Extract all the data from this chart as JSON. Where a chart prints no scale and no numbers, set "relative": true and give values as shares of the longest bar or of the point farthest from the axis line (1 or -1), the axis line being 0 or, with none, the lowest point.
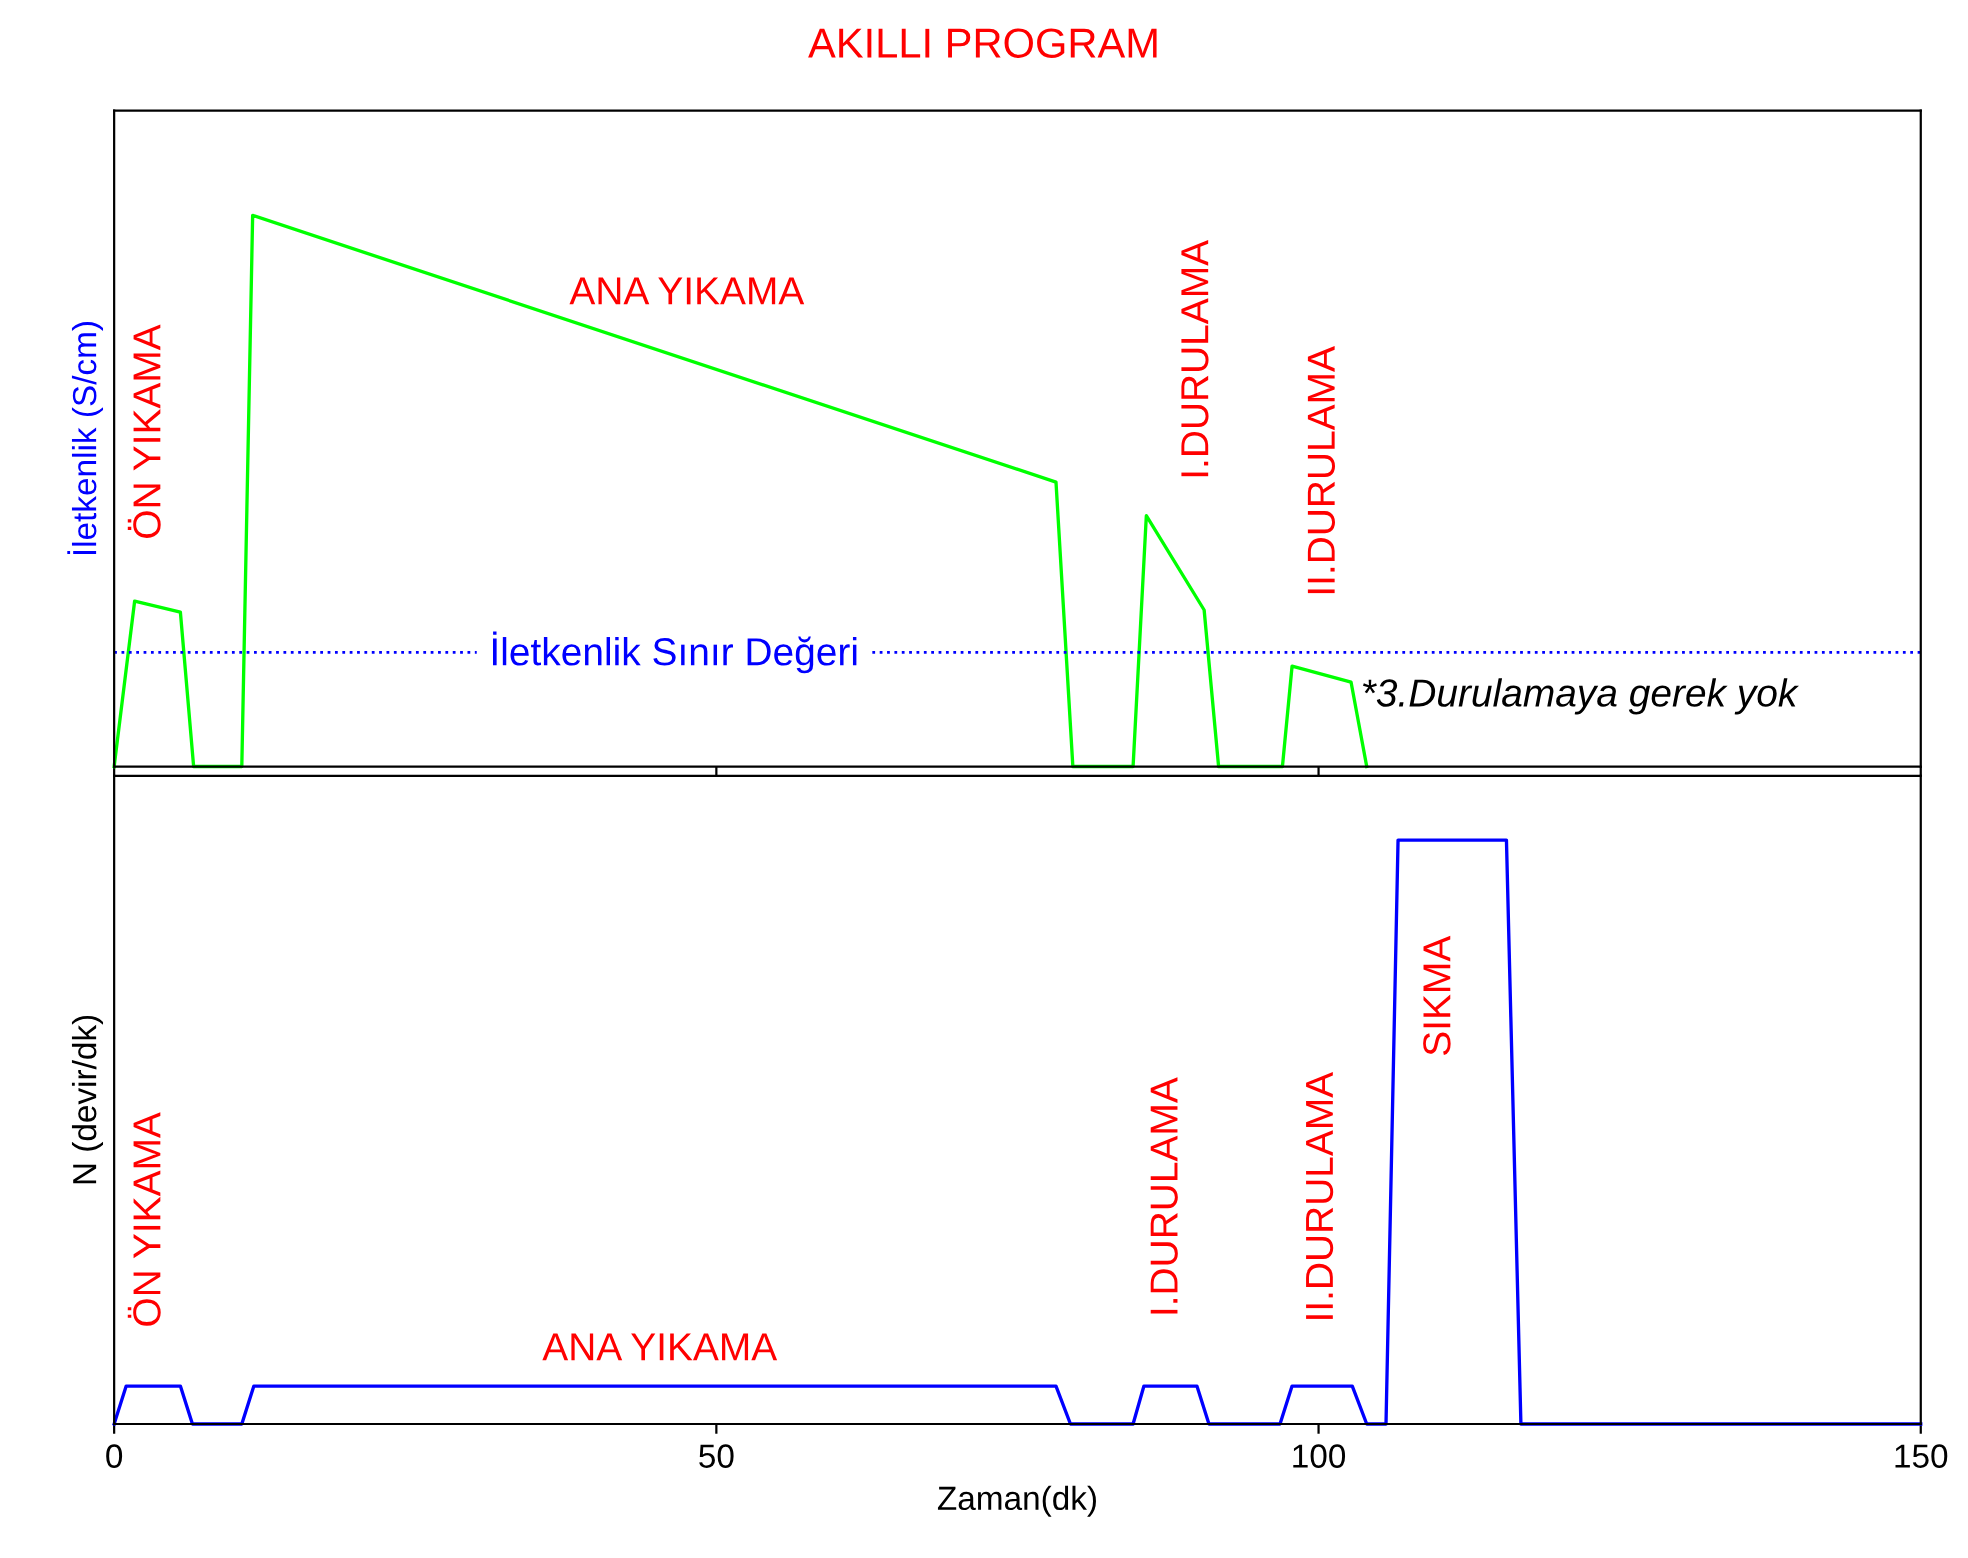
{
  "chart_data": [
    {
      "type": "line",
      "title": "AKILLI PROGRAM",
      "ylabel": "İletkenlik (S/cm)",
      "relative": true,
      "tick_labels": false,
      "xlim": [
        0,
        150
      ],
      "xticks": [
        0,
        50,
        100,
        150
      ],
      "grid": false,
      "legend": false,
      "marker": "none",
      "line_style": "solid",
      "series": [
        {
          "color": "#00ff00",
          "x": [
            0,
            1.7,
            5.5,
            6.6,
            10.6,
            11.5,
            78.2,
            79.6,
            84.6,
            85.7,
            90.5,
            91.7,
            97,
            97.8,
            102.7,
            104
          ],
          "values": [
            0,
            0.3,
            0.28,
            0,
            0,
            1,
            0.516,
            0,
            0,
            0.455,
            0.284,
            0,
            0,
            0.182,
            0.153,
            0
          ]
        }
      ],
      "ref_lines": [
        {
          "axis": "y",
          "value": 0.207,
          "label": "İletkenlik Sınır Değeri",
          "color": "#0000ff",
          "line_style": "dotted"
        }
      ],
      "annotations": [
        "ÖN YIKAMA",
        "ANA YIKAMA",
        "I.DURULAMA",
        "II.DURULAMA",
        "*3.Durulamaya gerek yok"
      ]
    },
    {
      "type": "line",
      "xlabel": "Zaman(dk)",
      "ylabel": "N (devir/dk)",
      "relative": true,
      "tick_labels": "x",
      "xlim": [
        0,
        150
      ],
      "xticks": [
        0,
        50,
        100,
        150
      ],
      "grid": false,
      "legend": false,
      "marker": "none",
      "line_style": "solid",
      "series": [
        {
          "color": "#0000ff",
          "x": [
            0,
            1.0,
            5.5,
            6.5,
            10.6,
            11.6,
            78.2,
            79.4,
            84.6,
            85.5,
            89.9,
            90.9,
            96.8,
            97.8,
            102.8,
            104,
            105.6,
            106.6,
            115.6,
            116.8,
            150
          ],
          "values": [
            0,
            0.065,
            0.065,
            0,
            0,
            0.065,
            0.065,
            0,
            0,
            0.065,
            0.065,
            0,
            0,
            0.065,
            0.065,
            0,
            0,
            1,
            1,
            0,
            0
          ]
        }
      ],
      "annotations": [
        "ÖN YIKAMA",
        "ANA YIKAMA",
        "I.DURULAMA",
        "II.DURULAMA",
        "SIKMA"
      ]
    }
  ]
}
